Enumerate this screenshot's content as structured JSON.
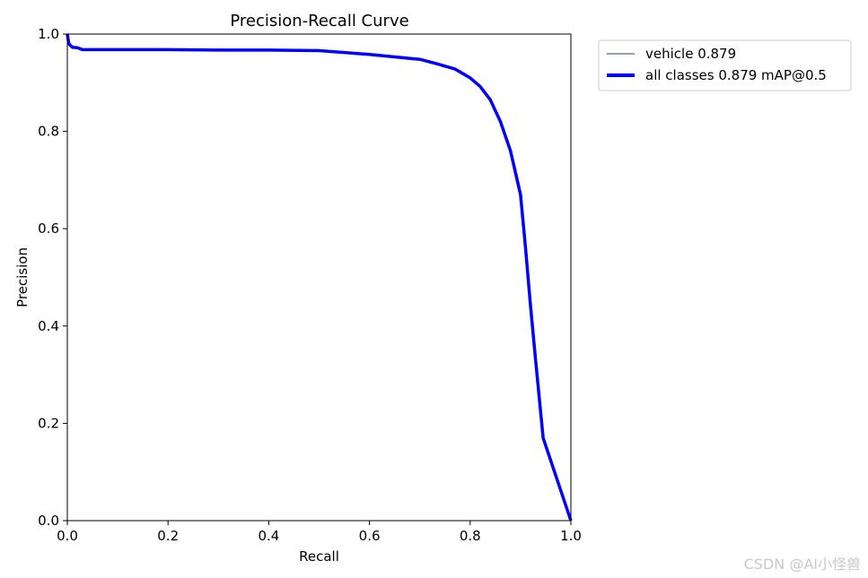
{
  "watermark": "CSDN @AI小怪兽",
  "chart_data": {
    "type": "line",
    "title": "Precision-Recall Curve",
    "xlabel": "Recall",
    "ylabel": "Precision",
    "xlim": [
      0,
      1
    ],
    "ylim": [
      0,
      1
    ],
    "xticks": [
      "0.0",
      "0.2",
      "0.4",
      "0.6",
      "0.8",
      "1.0"
    ],
    "yticks": [
      "0.0",
      "0.2",
      "0.4",
      "0.6",
      "0.8",
      "1.0"
    ],
    "legend_position": "outside-top-right",
    "grid": false,
    "series": [
      {
        "name": "vehicle 0.879",
        "color": "#1f3c88",
        "style": "thin",
        "x": [
          0.0,
          0.003,
          0.01,
          0.02,
          0.03,
          0.05,
          0.1,
          0.2,
          0.3,
          0.4,
          0.5,
          0.55,
          0.6,
          0.65,
          0.7,
          0.73,
          0.77,
          0.8,
          0.82,
          0.84,
          0.86,
          0.88,
          0.9,
          0.91,
          0.92,
          0.93,
          0.945,
          1.0
        ],
        "y": [
          1.0,
          0.98,
          0.973,
          0.972,
          0.968,
          0.968,
          0.968,
          0.968,
          0.967,
          0.967,
          0.966,
          0.962,
          0.958,
          0.953,
          0.948,
          0.94,
          0.928,
          0.91,
          0.892,
          0.865,
          0.82,
          0.76,
          0.67,
          0.56,
          0.44,
          0.33,
          0.17,
          0.0
        ]
      },
      {
        "name": "all classes 0.879 mAP@0.5",
        "color": "#0000ff",
        "style": "thick",
        "x": [
          0.0,
          0.003,
          0.01,
          0.02,
          0.03,
          0.05,
          0.1,
          0.2,
          0.3,
          0.4,
          0.5,
          0.55,
          0.6,
          0.65,
          0.7,
          0.73,
          0.77,
          0.8,
          0.82,
          0.84,
          0.86,
          0.88,
          0.9,
          0.91,
          0.92,
          0.93,
          0.945,
          1.0
        ],
        "y": [
          1.0,
          0.98,
          0.973,
          0.972,
          0.968,
          0.968,
          0.968,
          0.968,
          0.967,
          0.967,
          0.966,
          0.962,
          0.958,
          0.953,
          0.948,
          0.94,
          0.928,
          0.91,
          0.892,
          0.865,
          0.82,
          0.76,
          0.67,
          0.56,
          0.44,
          0.33,
          0.17,
          0.0
        ]
      }
    ]
  }
}
